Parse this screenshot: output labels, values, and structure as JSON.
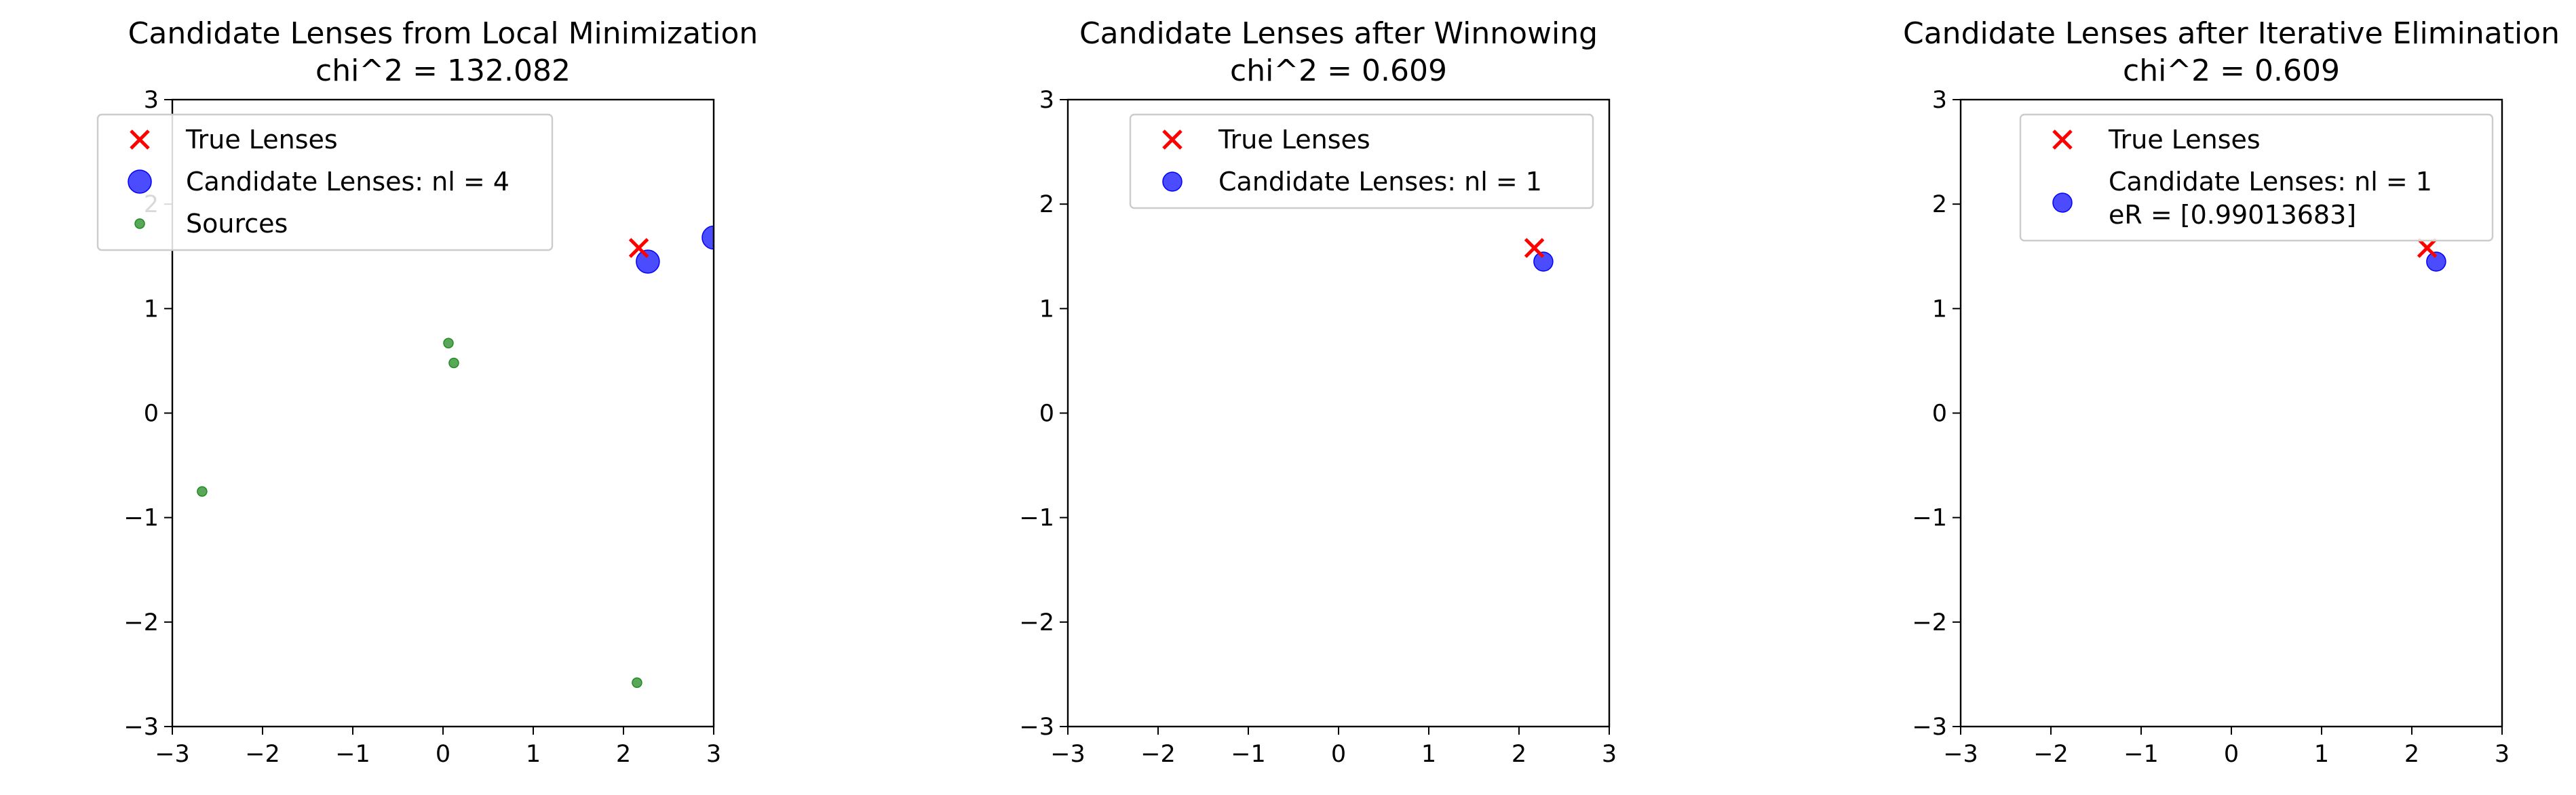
{
  "chart_data": [
    {
      "type": "scatter",
      "title": "Candidate Lenses from Local Minimization",
      "subtitle": "chi^2 = 132.082",
      "xlim": [
        -3,
        3
      ],
      "ylim": [
        -3,
        3
      ],
      "xticks": [
        "−3",
        "−2",
        "−1",
        "0",
        "1",
        "2",
        "3"
      ],
      "yticks": [
        "−3",
        "−2",
        "−1",
        "0",
        "1",
        "2",
        "3"
      ],
      "grid": false,
      "legend_position": "upper-left",
      "series": [
        {
          "name": "True Lenses",
          "marker": "x",
          "color": "#ff0000",
          "points": [
            {
              "x": 2.17,
              "y": 1.58
            }
          ]
        },
        {
          "name": "Candidate Lenses: nl = 4",
          "marker": "circle-large",
          "color": "#0000ff",
          "points": [
            {
              "x": 2.27,
              "y": 1.45
            },
            {
              "x": 3.0,
              "y": 1.68
            }
          ]
        },
        {
          "name": "Sources",
          "marker": "circle-small",
          "color": "#228b22",
          "points": [
            {
              "x": 0.06,
              "y": 0.67
            },
            {
              "x": 0.12,
              "y": 0.48
            },
            {
              "x": -2.67,
              "y": -0.75
            },
            {
              "x": 2.15,
              "y": -2.58
            }
          ]
        }
      ]
    },
    {
      "type": "scatter",
      "title": "Candidate Lenses after Winnowing",
      "subtitle": "chi^2 = 0.609",
      "xlim": [
        -3,
        3
      ],
      "ylim": [
        -3,
        3
      ],
      "xticks": [
        "−3",
        "−2",
        "−1",
        "0",
        "1",
        "2",
        "3"
      ],
      "yticks": [
        "−3",
        "−2",
        "−1",
        "0",
        "1",
        "2",
        "3"
      ],
      "grid": false,
      "legend_position": "upper-right",
      "series": [
        {
          "name": "True Lenses",
          "marker": "x",
          "color": "#ff0000",
          "points": [
            {
              "x": 2.17,
              "y": 1.58
            }
          ]
        },
        {
          "name": "Candidate Lenses: nl = 1",
          "marker": "circle",
          "color": "#0000ff",
          "points": [
            {
              "x": 2.27,
              "y": 1.45
            }
          ]
        }
      ]
    },
    {
      "type": "scatter",
      "title": "Candidate Lenses after Iterative Elimination",
      "subtitle": "chi^2 = 0.609",
      "xlim": [
        -3,
        3
      ],
      "ylim": [
        -3,
        3
      ],
      "xticks": [
        "−3",
        "−2",
        "−1",
        "0",
        "1",
        "2",
        "3"
      ],
      "yticks": [
        "−3",
        "−2",
        "−1",
        "0",
        "1",
        "2",
        "3"
      ],
      "grid": false,
      "legend_position": "upper-right",
      "series": [
        {
          "name": "True Lenses",
          "marker": "x",
          "color": "#ff0000",
          "points": [
            {
              "x": 2.17,
              "y": 1.58
            }
          ]
        },
        {
          "name": "Candidate Lenses: nl = 1",
          "name_line2": " eR = [0.99013683]",
          "marker": "circle",
          "color": "#0000ff",
          "points": [
            {
              "x": 2.27,
              "y": 1.45
            }
          ]
        }
      ]
    }
  ]
}
